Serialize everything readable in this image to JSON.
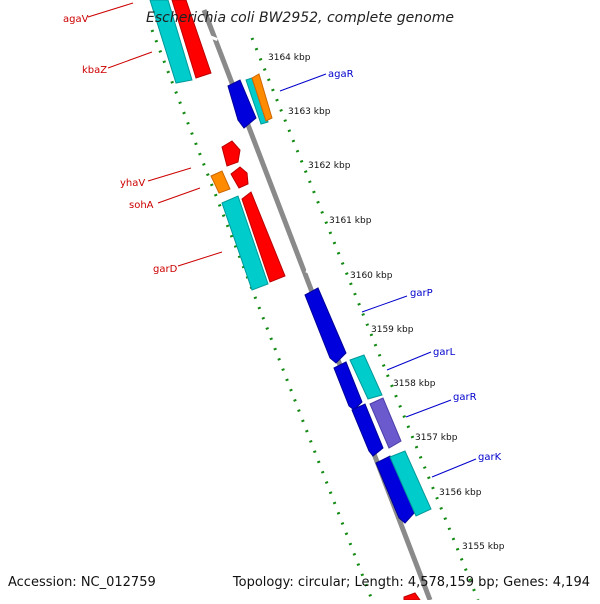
{
  "title": "Escherichia coli BW2952, complete genome",
  "accession": "Accession: NC_012759",
  "summary": "Topology: circular; Length: 4,578,159 bp; Genes: 4,194",
  "colors": {
    "backbone": "#8a8a8a",
    "dots": "#138a13",
    "forward_label": "#cc0000",
    "reverse_label": "#0000cc",
    "gene_red": "#ff0000",
    "gene_cyan": "#00cccc",
    "gene_blue": "#0000dd",
    "gene_orange": "#ff8c00",
    "gene_purple": "#6a5acd"
  },
  "ticks": [
    "3164 kbp",
    "3163 kbp",
    "3162 kbp",
    "3161 kbp",
    "3160 kbp",
    "3159 kbp",
    "3158 kbp",
    "3157 kbp",
    "3156 kbp",
    "3155 kbp"
  ],
  "left_labels": [
    "agaV",
    "kbaZ",
    "yhaV",
    "sohA",
    "garD"
  ],
  "right_labels": [
    "agaR",
    "garP",
    "garL",
    "garR",
    "garK"
  ]
}
